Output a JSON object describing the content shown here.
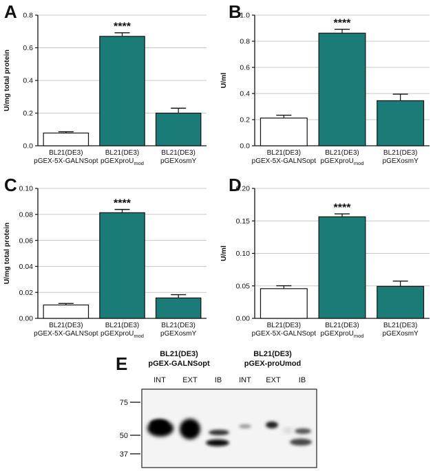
{
  "chart_data": [
    {
      "panel": "A",
      "type": "bar",
      "ylabel": "U/mg total protein",
      "ylim": [
        0,
        0.8
      ],
      "yticks": [
        "0.0",
        "0.2",
        "0.4",
        "0.6",
        "0.8"
      ],
      "categories": [
        {
          "line1": "BL21(DE3)",
          "line2": "pGEX-5X-GALNSopt",
          "sub": ""
        },
        {
          "line1": "BL21(DE3)",
          "line2": "pGEXproU",
          "sub": "mod"
        },
        {
          "line1": "BL21(DE3)",
          "line2": "pGEXosmY",
          "sub": ""
        }
      ],
      "values": [
        0.078,
        0.67,
        0.2
      ],
      "errors": [
        0.008,
        0.022,
        0.03
      ],
      "colors": [
        "#ffffff",
        "#1b7b76",
        "#1b7b76"
      ],
      "significance": [
        "",
        "****",
        ""
      ],
      "grid": true
    },
    {
      "panel": "B",
      "type": "bar",
      "ylabel": "U/ml",
      "ylim": [
        0,
        1.0
      ],
      "yticks": [
        "0.0",
        "0.2",
        "0.4",
        "0.6",
        "0.8",
        "1.0"
      ],
      "categories": [
        {
          "line1": "BL21(DE3)",
          "line2": "pGEX-5X-GALNSopt",
          "sub": ""
        },
        {
          "line1": "BL21(DE3)",
          "line2": "pGEXproU",
          "sub": "mod"
        },
        {
          "line1": "BL21(DE3)",
          "line2": "pGEXosmY",
          "sub": ""
        }
      ],
      "values": [
        0.212,
        0.862,
        0.345
      ],
      "errors": [
        0.022,
        0.03,
        0.05
      ],
      "colors": [
        "#ffffff",
        "#1b7b76",
        "#1b7b76"
      ],
      "significance": [
        "",
        "****",
        ""
      ],
      "grid": true
    },
    {
      "panel": "C",
      "type": "bar",
      "ylabel": "U/mg total protein",
      "ylim": [
        0,
        0.1
      ],
      "yticks": [
        "0.00",
        "0.02",
        "0.04",
        "0.06",
        "0.08",
        "0.10"
      ],
      "categories": [
        {
          "line1": "BL21(DE3)",
          "line2": "pGEX-5X-GALNSopt",
          "sub": ""
        },
        {
          "line1": "BL21(DE3)",
          "line2": "pGEXproU",
          "sub": "mod"
        },
        {
          "line1": "BL21(DE3)",
          "line2": "pGEXosmY",
          "sub": ""
        }
      ],
      "values": [
        0.0103,
        0.0813,
        0.0157
      ],
      "errors": [
        0.0012,
        0.0025,
        0.0025
      ],
      "colors": [
        "#ffffff",
        "#1b7b76",
        "#1b7b76"
      ],
      "significance": [
        "",
        "****",
        ""
      ],
      "grid": true
    },
    {
      "panel": "D",
      "type": "bar",
      "ylabel": "U/ml",
      "ylim": [
        0,
        0.2
      ],
      "yticks": [
        "0.00",
        "0.05",
        "0.10",
        "0.15",
        "0.20"
      ],
      "categories": [
        {
          "line1": "BL21(DE3)",
          "line2": "pGEX-5X-GALNSopt",
          "sub": ""
        },
        {
          "line1": "BL21(DE3)",
          "line2": "pGEXproU",
          "sub": "mod"
        },
        {
          "line1": "BL21(DE3)",
          "line2": "pGEXosmY",
          "sub": ""
        }
      ],
      "values": [
        0.0457,
        0.1563,
        0.0493
      ],
      "errors": [
        0.0045,
        0.0045,
        0.008
      ],
      "colors": [
        "#ffffff",
        "#1b7b76",
        "#1b7b76"
      ],
      "significance": [
        "",
        "****",
        ""
      ],
      "grid": true
    }
  ],
  "blot": {
    "panel": "E",
    "group1": {
      "line1": "BL21(DE3)",
      "line2": "pGEX-GALNSopt"
    },
    "group2": {
      "line1": "BL21(DE3)",
      "line2": "pGEX-proUmod"
    },
    "lanes": [
      "INT",
      "EXT",
      "IB",
      "INT",
      "EXT",
      "IB"
    ],
    "markers": [
      "75",
      "50",
      "37"
    ]
  }
}
